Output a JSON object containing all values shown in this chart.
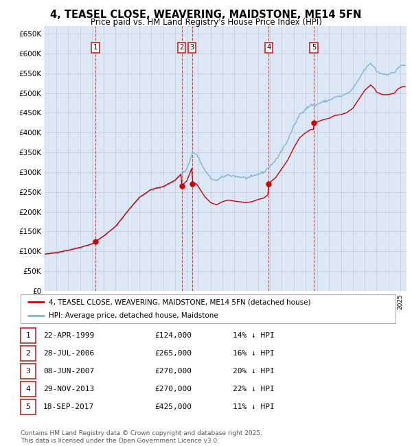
{
  "title": "4, TEASEL CLOSE, WEAVERING, MAIDSTONE, ME14 5FN",
  "subtitle": "Price paid vs. HM Land Registry's House Price Index (HPI)",
  "sales": [
    {
      "num": 1,
      "date_f": [
        1999,
        4,
        22
      ],
      "price": 124000,
      "label": "22-APR-1999",
      "pct": "14%",
      "dir": "↓"
    },
    {
      "num": 2,
      "date_f": [
        2006,
        7,
        28
      ],
      "price": 265000,
      "label": "28-JUL-2006",
      "pct": "16%",
      "dir": "↓"
    },
    {
      "num": 3,
      "date_f": [
        2007,
        6,
        8
      ],
      "price": 270000,
      "label": "08-JUN-2007",
      "pct": "20%",
      "dir": "↓"
    },
    {
      "num": 4,
      "date_f": [
        2013,
        11,
        29
      ],
      "price": 270000,
      "label": "29-NOV-2013",
      "pct": "22%",
      "dir": "↓"
    },
    {
      "num": 5,
      "date_f": [
        2017,
        9,
        18
      ],
      "price": 425000,
      "label": "18-SEP-2017",
      "pct": "11%",
      "dir": "↓"
    }
  ],
  "hpi_keypoints": [
    [
      1995.0,
      92000
    ],
    [
      1996.0,
      96000
    ],
    [
      1997.0,
      102000
    ],
    [
      1998.0,
      109000
    ],
    [
      1999.0,
      118000
    ],
    [
      2000.0,
      138000
    ],
    [
      2001.0,
      162000
    ],
    [
      2002.0,
      200000
    ],
    [
      2003.0,
      235000
    ],
    [
      2004.0,
      255000
    ],
    [
      2005.0,
      262000
    ],
    [
      2006.0,
      278000
    ],
    [
      2007.0,
      308000
    ],
    [
      2007.5,
      350000
    ],
    [
      2007.83,
      345000
    ],
    [
      2008.5,
      305000
    ],
    [
      2009.0,
      285000
    ],
    [
      2009.5,
      278000
    ],
    [
      2010.0,
      288000
    ],
    [
      2010.5,
      293000
    ],
    [
      2011.0,
      290000
    ],
    [
      2012.0,
      285000
    ],
    [
      2012.5,
      288000
    ],
    [
      2013.0,
      295000
    ],
    [
      2013.5,
      300000
    ],
    [
      2014.0,
      315000
    ],
    [
      2014.5,
      330000
    ],
    [
      2015.0,
      355000
    ],
    [
      2015.5,
      380000
    ],
    [
      2016.0,
      415000
    ],
    [
      2016.5,
      445000
    ],
    [
      2017.0,
      460000
    ],
    [
      2017.5,
      470000
    ],
    [
      2017.83,
      468000
    ],
    [
      2018.0,
      472000
    ],
    [
      2018.5,
      478000
    ],
    [
      2019.0,
      482000
    ],
    [
      2019.5,
      490000
    ],
    [
      2020.0,
      492000
    ],
    [
      2020.5,
      498000
    ],
    [
      2021.0,
      510000
    ],
    [
      2021.5,
      535000
    ],
    [
      2022.0,
      560000
    ],
    [
      2022.5,
      575000
    ],
    [
      2022.83,
      565000
    ],
    [
      2023.0,
      555000
    ],
    [
      2023.5,
      548000
    ],
    [
      2024.0,
      548000
    ],
    [
      2024.5,
      552000
    ],
    [
      2024.83,
      565000
    ],
    [
      2025.17,
      570000
    ]
  ],
  "hpi_line_color": "#7fb3d3",
  "price_line_color": "#cc0000",
  "vline_color": "#dd2222",
  "marker_color": "#cc0000",
  "bg_color": "#dce8f5",
  "plot_bg": "#ffffff",
  "grid_color": "#bbccdd",
  "ylim": [
    0,
    670000
  ],
  "yticks": [
    0,
    50000,
    100000,
    150000,
    200000,
    250000,
    300000,
    350000,
    400000,
    450000,
    500000,
    550000,
    600000,
    650000
  ],
  "xmin": 1995.0,
  "xmax": 2025.5,
  "footer": "Contains HM Land Registry data © Crown copyright and database right 2025.\nThis data is licensed under the Open Government Licence v3.0.",
  "legend_address": "4, TEASEL CLOSE, WEAVERING, MAIDSTONE, ME14 5FN (detached house)",
  "legend_hpi": "HPI: Average price, detached house, Maidstone"
}
